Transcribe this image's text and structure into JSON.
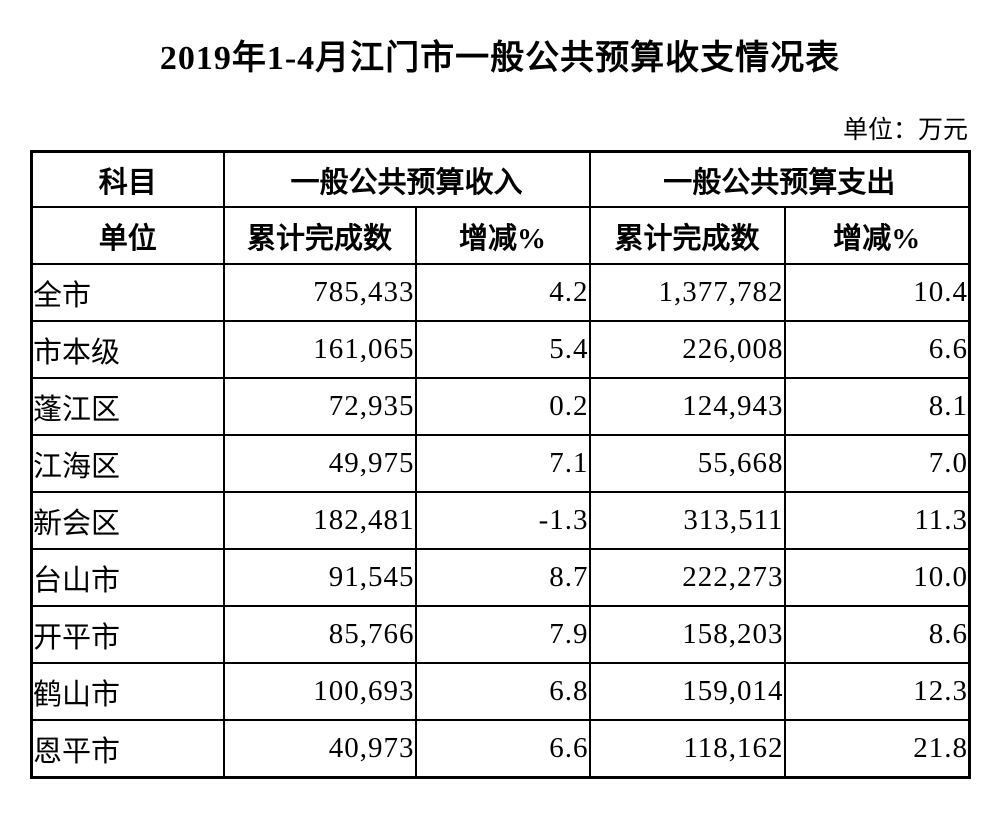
{
  "page": {
    "title": "2019年1-4月江门市一般公共预算收支情况表",
    "unit_note": "单位：万元"
  },
  "table": {
    "header": {
      "subject_label": "科目",
      "unit_label": "单位",
      "income_group": "一般公共预算收入",
      "expense_group": "一般公共预算支出",
      "income_cumulative_label": "累计完成数",
      "income_change_label": "增减%",
      "expense_cumulative_label": "累计完成数",
      "expense_change_label": "增减%"
    },
    "rows": [
      {
        "region": "全市",
        "income_cumulative": "785,433",
        "income_change": "4.2",
        "expense_cumulative": "1,377,782",
        "expense_change": "10.4"
      },
      {
        "region": "市本级",
        "income_cumulative": "161,065",
        "income_change": "5.4",
        "expense_cumulative": "226,008",
        "expense_change": "6.6"
      },
      {
        "region": "蓬江区",
        "income_cumulative": "72,935",
        "income_change": "0.2",
        "expense_cumulative": "124,943",
        "expense_change": "8.1"
      },
      {
        "region": "江海区",
        "income_cumulative": "49,975",
        "income_change": "7.1",
        "expense_cumulative": "55,668",
        "expense_change": "7.0"
      },
      {
        "region": "新会区",
        "income_cumulative": "182,481",
        "income_change": "-1.3",
        "expense_cumulative": "313,511",
        "expense_change": "11.3"
      },
      {
        "region": "台山市",
        "income_cumulative": "91,545",
        "income_change": "8.7",
        "expense_cumulative": "222,273",
        "expense_change": "10.0"
      },
      {
        "region": "开平市",
        "income_cumulative": "85,766",
        "income_change": "7.9",
        "expense_cumulative": "158,203",
        "expense_change": "8.6"
      },
      {
        "region": "鹤山市",
        "income_cumulative": "100,693",
        "income_change": "6.8",
        "expense_cumulative": "159,014",
        "expense_change": "12.3"
      },
      {
        "region": "恩平市",
        "income_cumulative": "40,973",
        "income_change": "6.6",
        "expense_cumulative": "118,162",
        "expense_change": "21.8"
      }
    ]
  }
}
